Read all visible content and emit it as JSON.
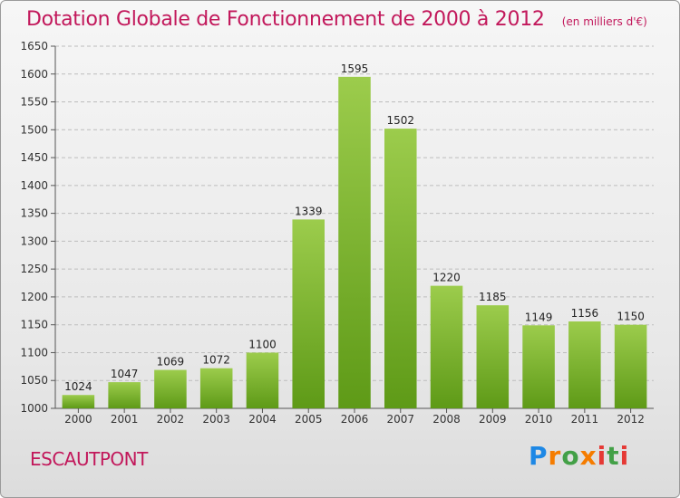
{
  "header": {
    "title": "Dotation Globale de Fonctionnement de 2000 à 2012",
    "unit": "(en milliers d'€)"
  },
  "footer": {
    "commune": "ESCAUTPONT",
    "brand_letters": [
      "P",
      "r",
      "o",
      "x",
      "i",
      "t",
      "i"
    ]
  },
  "colors": {
    "title": "#c2185b",
    "bar_light": "#9ccc4c",
    "bar_dark": "#5e9a17",
    "grid": "#bdbdbd"
  },
  "chart_data": {
    "type": "bar",
    "title": "Dotation Globale de Fonctionnement de 2000 à 2012",
    "xlabel": "",
    "ylabel": "",
    "categories": [
      "2000",
      "2001",
      "2002",
      "2003",
      "2004",
      "2005",
      "2006",
      "2007",
      "2008",
      "2009",
      "2010",
      "2011",
      "2012"
    ],
    "values": [
      1024,
      1047,
      1069,
      1072,
      1100,
      1339,
      1595,
      1502,
      1220,
      1185,
      1149,
      1156,
      1150
    ],
    "ylim": [
      1000,
      1650
    ],
    "yticks": [
      1000,
      1050,
      1100,
      1150,
      1200,
      1250,
      1300,
      1350,
      1400,
      1450,
      1500,
      1550,
      1600,
      1650
    ],
    "grid": true,
    "legend": "none"
  }
}
